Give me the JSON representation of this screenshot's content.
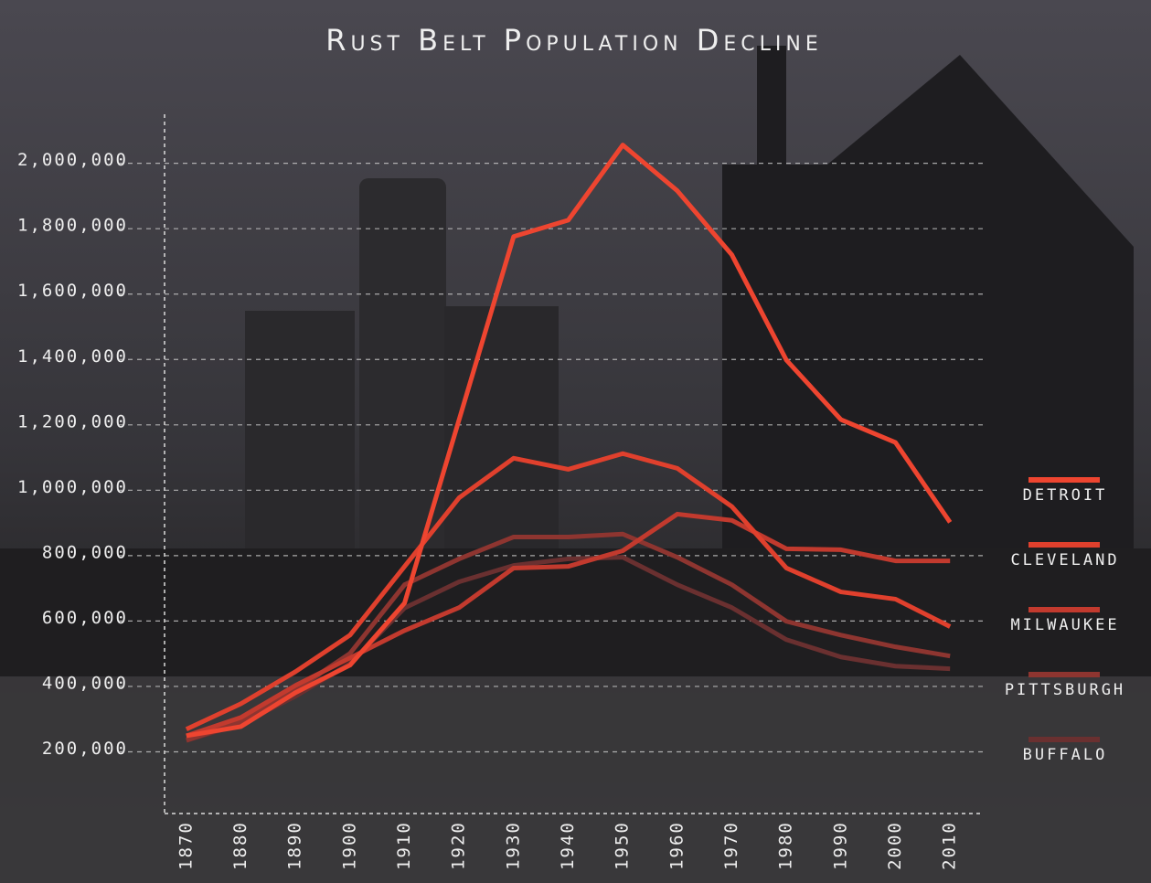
{
  "chart_data": {
    "type": "line",
    "title": "Rust Belt Population Decline",
    "x": [
      1870,
      1880,
      1890,
      1900,
      1910,
      1920,
      1930,
      1940,
      1950,
      1960,
      1970,
      1980,
      1990,
      2000,
      2010
    ],
    "xlim": [
      1866,
      2016
    ],
    "xticks": [
      1870,
      1880,
      1890,
      1900,
      1910,
      1920,
      1930,
      1940,
      1950,
      1960,
      1970,
      1980,
      1990,
      2000,
      2010
    ],
    "ylim": [
      0,
      2150000
    ],
    "yticks": [
      {
        "value": 200000,
        "label": "200,000"
      },
      {
        "value": 400000,
        "label": "400,000"
      },
      {
        "value": 600000,
        "label": "600,000"
      },
      {
        "value": 800000,
        "label": "800,000"
      },
      {
        "value": 1000000,
        "label": "1,000,000"
      },
      {
        "value": 1200000,
        "label": "1,200,000"
      },
      {
        "value": 1400000,
        "label": "1,400,000"
      },
      {
        "value": 1600000,
        "label": "1,600,000"
      },
      {
        "value": 1800000,
        "label": "1,800,000"
      },
      {
        "value": 2000000,
        "label": "2,000,000"
      }
    ],
    "grid": true,
    "legend": "right",
    "series": [
      {
        "name": "DETROIT",
        "color": "#ee4530",
        "values": [
          249000,
          277000,
          381000,
          465000,
          655000,
          1216000,
          1776000,
          1826000,
          2056000,
          1916000,
          1720000,
          1398000,
          1216000,
          1146000,
          902000
        ]
      },
      {
        "name": "CLEVELAND",
        "color": "#e0402d",
        "values": [
          269000,
          347000,
          445000,
          557000,
          767000,
          977000,
          1098000,
          1064000,
          1112000,
          1067000,
          950000,
          762000,
          689000,
          667000,
          583000
        ]
      },
      {
        "name": "MILWAUKEE",
        "color": "#c23a2e",
        "values": [
          249000,
          305000,
          403000,
          487000,
          571000,
          641000,
          762000,
          767000,
          815000,
          927000,
          908000,
          821000,
          818000,
          784000,
          784000
        ]
      },
      {
        "name": "PITTSBURGH",
        "color": "#8e3530",
        "values": [
          235000,
          291000,
          389000,
          501000,
          711000,
          790000,
          857000,
          857000,
          866000,
          795000,
          711000,
          599000,
          557000,
          521000,
          493000
        ]
      },
      {
        "name": "BUFFALO",
        "color": "#6a3030",
        "values": [
          235000,
          285000,
          370000,
          470000,
          640000,
          720000,
          770000,
          790000,
          795000,
          711000,
          641000,
          543000,
          490000,
          462000,
          454000
        ]
      }
    ]
  }
}
